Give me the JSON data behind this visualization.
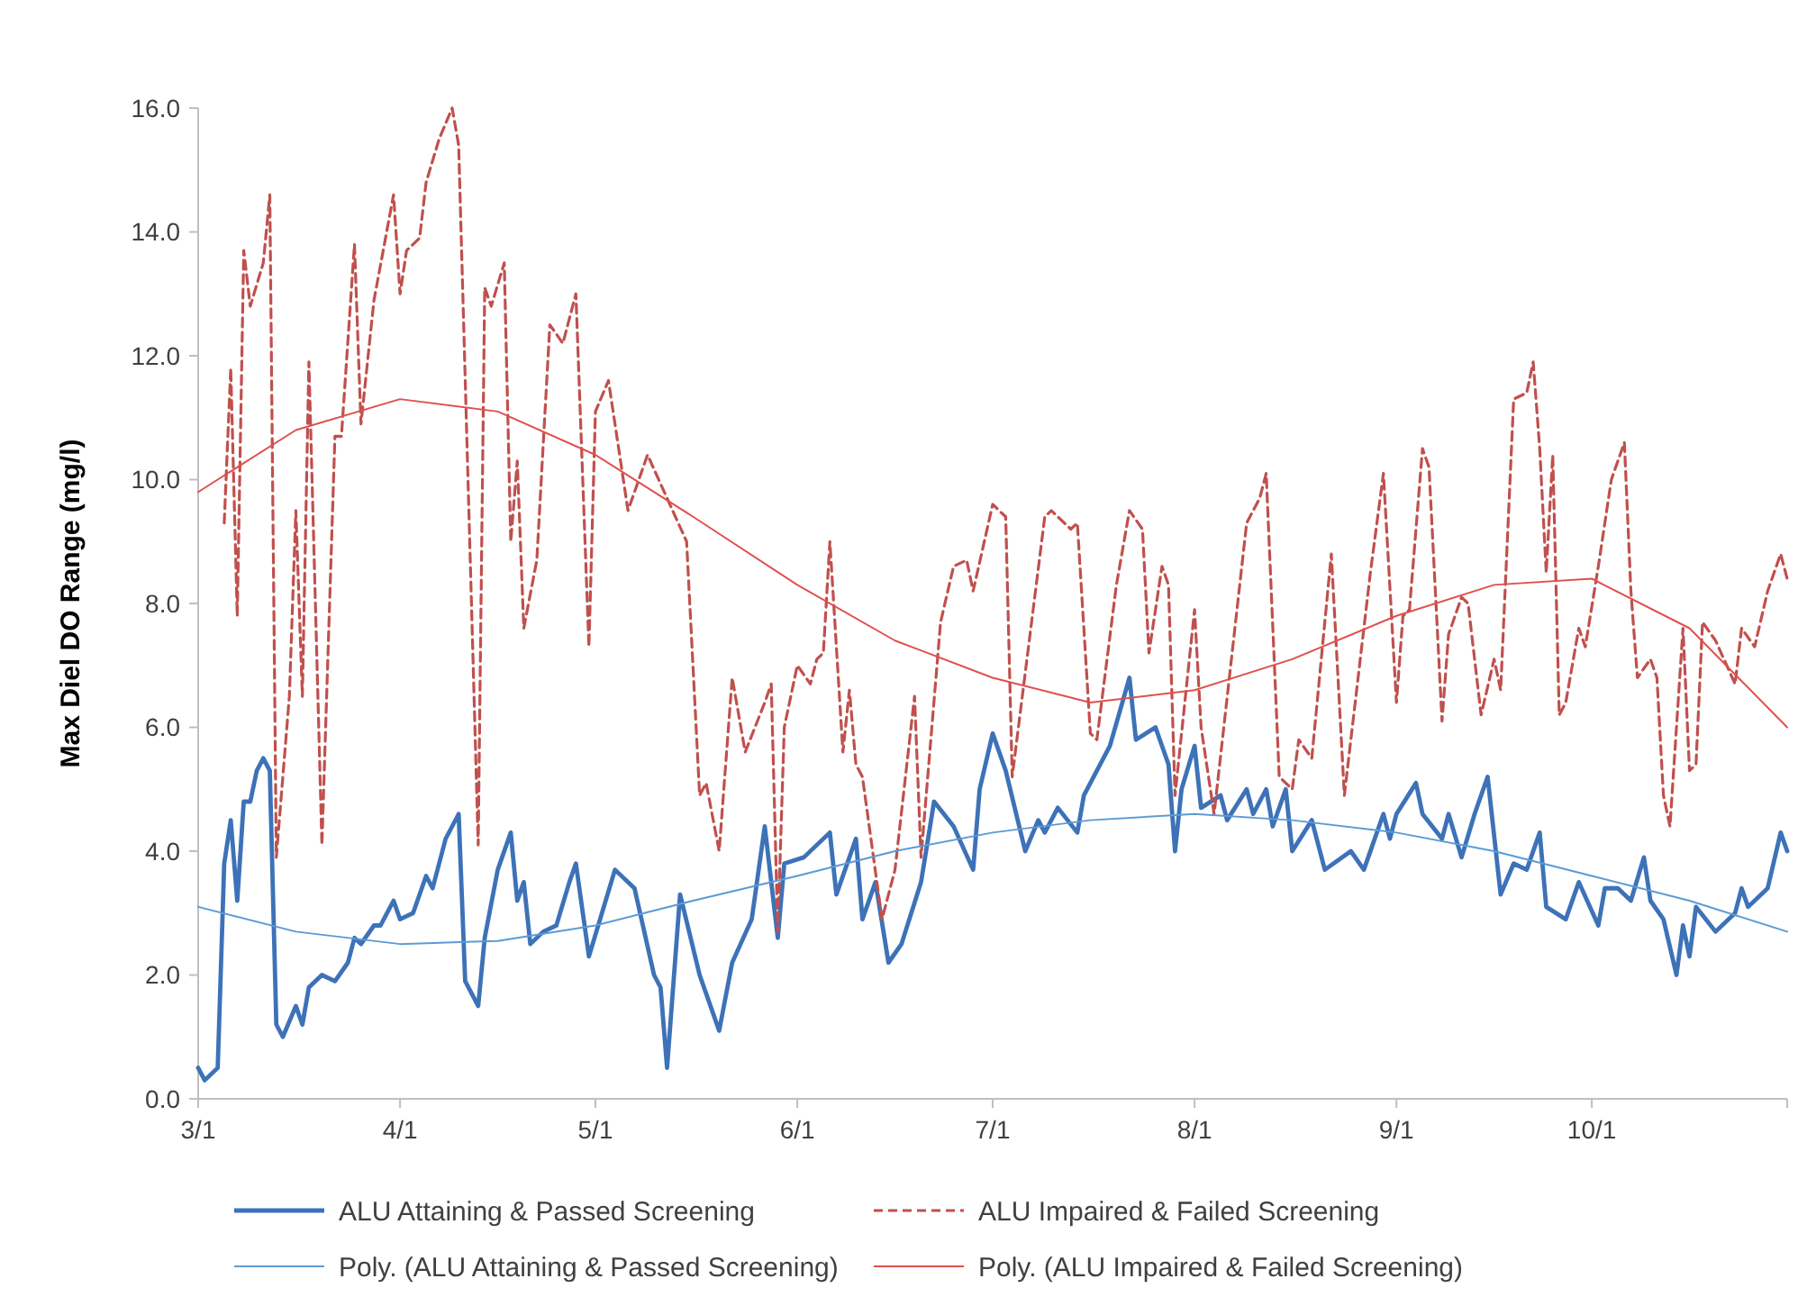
{
  "chart_data": {
    "type": "line",
    "ylabel": "Max Diel DO Range (mg/l)",
    "xlim": [
      "--03-01",
      "--10-31"
    ],
    "xticks": [
      {
        "value": "--03-01",
        "label": "3/1"
      },
      {
        "value": "--04-01",
        "label": "4/1"
      },
      {
        "value": "--05-01",
        "label": "5/1"
      },
      {
        "value": "--06-01",
        "label": "6/1"
      },
      {
        "value": "--07-01",
        "label": "7/1"
      },
      {
        "value": "--08-01",
        "label": "8/1"
      },
      {
        "value": "--09-01",
        "label": "9/1"
      },
      {
        "value": "--10-01",
        "label": "10/1"
      },
      {
        "value": "--10-31",
        "label": null
      }
    ],
    "ylim": [
      0,
      16
    ],
    "yticks": [
      {
        "value": 0,
        "label": "0.0"
      },
      {
        "value": 2,
        "label": "2.0"
      },
      {
        "value": 4,
        "label": "4.0"
      },
      {
        "value": 6,
        "label": "6.0"
      },
      {
        "value": 8,
        "label": "8.0"
      },
      {
        "value": 10,
        "label": "10.0"
      },
      {
        "value": 12,
        "label": "12.0"
      },
      {
        "value": 14,
        "label": "14.0"
      },
      {
        "value": 16,
        "label": "16.0"
      }
    ],
    "legend": "bottom",
    "series": [
      {
        "name": "ALU Attaining & Passed Screening",
        "color": "#3d72b8",
        "line_style": "solid",
        "x": [
          "--03-01",
          "--03-02",
          "--03-04",
          "--03-05",
          "--03-06",
          "--03-07",
          "--03-08",
          "--03-09",
          "--03-10",
          "--03-11",
          "--03-12",
          "--03-13",
          "--03-14",
          "--03-16",
          "--03-17",
          "--03-18",
          "--03-20",
          "--03-22",
          "--03-24",
          "--03-25",
          "--03-26",
          "--03-28",
          "--03-29",
          "--03-31",
          "--04-01",
          "--04-03",
          "--04-05",
          "--04-06",
          "--04-08",
          "--04-10",
          "--04-11",
          "--04-13",
          "--04-14",
          "--04-16",
          "--04-18",
          "--04-19",
          "--04-20",
          "--04-21",
          "--04-23",
          "--04-25",
          "--04-27",
          "--04-28",
          "--04-30",
          "--05-04",
          "--05-07",
          "--05-10",
          "--05-11",
          "--05-12",
          "--05-14",
          "--05-17",
          "--05-20",
          "--05-22",
          "--05-25",
          "--05-27",
          "--05-29",
          "--05-30",
          "--06-02",
          "--06-06",
          "--06-07",
          "--06-10",
          "--06-11",
          "--06-13",
          "--06-15",
          "--06-17",
          "--06-20",
          "--06-22",
          "--06-25",
          "--06-28",
          "--06-29",
          "--07-01",
          "--07-03",
          "--07-06",
          "--07-08",
          "--07-09",
          "--07-11",
          "--07-14",
          "--07-15",
          "--07-19",
          "--07-22",
          "--07-23",
          "--07-26",
          "--07-28",
          "--07-29",
          "--07-30",
          "--08-01",
          "--08-02",
          "--08-05",
          "--08-06",
          "--08-09",
          "--08-10",
          "--08-12",
          "--08-13",
          "--08-15",
          "--08-16",
          "--08-19",
          "--08-21",
          "--08-25",
          "--08-27",
          "--08-30",
          "--08-31",
          "--09-01",
          "--09-04",
          "--09-05",
          "--09-08",
          "--09-09",
          "--09-11",
          "--09-13",
          "--09-15",
          "--09-17",
          "--09-19",
          "--09-21",
          "--09-23",
          "--09-24",
          "--09-27",
          "--09-29",
          "--10-02",
          "--10-03",
          "--10-05",
          "--10-07",
          "--10-09",
          "--10-10",
          "--10-12",
          "--10-14",
          "--10-15",
          "--10-16",
          "--10-17",
          "--10-20",
          "--10-23",
          "--10-24",
          "--10-25",
          "--10-28",
          "--10-30",
          "--10-31"
        ],
        "values": [
          0.5,
          0.3,
          0.5,
          3.8,
          4.5,
          3.2,
          4.8,
          4.8,
          5.3,
          5.5,
          5.3,
          1.2,
          1.0,
          1.5,
          1.2,
          1.8,
          2.0,
          1.9,
          2.2,
          2.6,
          2.5,
          2.8,
          2.8,
          3.2,
          2.9,
          3.0,
          3.6,
          3.4,
          4.2,
          4.6,
          1.9,
          1.5,
          2.6,
          3.7,
          4.3,
          3.2,
          3.5,
          2.5,
          2.7,
          2.8,
          3.5,
          3.8,
          2.3,
          3.7,
          3.4,
          2.0,
          1.8,
          0.5,
          3.3,
          2.0,
          1.1,
          2.2,
          2.9,
          4.4,
          2.6,
          3.8,
          3.9,
          4.3,
          3.3,
          4.2,
          2.9,
          3.5,
          2.2,
          2.5,
          3.5,
          4.8,
          4.4,
          3.7,
          5.0,
          5.9,
          5.3,
          4.0,
          4.5,
          4.3,
          4.7,
          4.3,
          4.9,
          5.7,
          6.8,
          5.8,
          6.0,
          5.4,
          4.0,
          5.0,
          5.7,
          4.7,
          4.9,
          4.5,
          5.0,
          4.6,
          5.0,
          4.4,
          5.0,
          4.0,
          4.5,
          3.7,
          4.0,
          3.7,
          4.6,
          4.2,
          4.6,
          5.1,
          4.6,
          4.2,
          4.6,
          3.9,
          4.6,
          5.2,
          3.3,
          3.8,
          3.7,
          4.3,
          3.1,
          2.9,
          3.5,
          2.8,
          3.4,
          3.4,
          3.2,
          3.9,
          3.2,
          2.9,
          2.0,
          2.8,
          2.3,
          3.1,
          2.7,
          3.0,
          3.4,
          3.1,
          3.4,
          4.3,
          4.0
        ]
      },
      {
        "name": "ALU Impaired & Failed Screening",
        "color": "#c0504d",
        "line_style": "dashed",
        "x": [
          "--03-05",
          "--03-06",
          "--03-07",
          "--03-08",
          "--03-09",
          "--03-11",
          "--03-12",
          "--03-13",
          "--03-15",
          "--03-16",
          "--03-17",
          "--03-18",
          "--03-20",
          "--03-22",
          "--03-23",
          "--03-25",
          "--03-26",
          "--03-28",
          "--03-31",
          "--04-01",
          "--04-02",
          "--04-04",
          "--04-05",
          "--04-07",
          "--04-09",
          "--04-10",
          "--04-13",
          "--04-14",
          "--04-15",
          "--04-17",
          "--04-18",
          "--04-19",
          "--04-20",
          "--04-22",
          "--04-24",
          "--04-26",
          "--04-28",
          "--04-30",
          "--05-01",
          "--05-03",
          "--05-06",
          "--05-09",
          "--05-12",
          "--05-15",
          "--05-17",
          "--05-18",
          "--05-20",
          "--05-22",
          "--05-24",
          "--05-27",
          "--05-28",
          "--05-29",
          "--05-30",
          "--06-01",
          "--06-03",
          "--06-04",
          "--06-05",
          "--06-06",
          "--06-08",
          "--06-09",
          "--06-10",
          "--06-11",
          "--06-14",
          "--06-16",
          "--06-19",
          "--06-20",
          "--06-23",
          "--06-25",
          "--06-27",
          "--06-28",
          "--07-01",
          "--07-03",
          "--07-04",
          "--07-09",
          "--07-10",
          "--07-13",
          "--07-14",
          "--07-16",
          "--07-17",
          "--07-20",
          "--07-22",
          "--07-24",
          "--07-25",
          "--07-27",
          "--07-28",
          "--07-29",
          "--08-01",
          "--08-02",
          "--08-04",
          "--08-09",
          "--08-11",
          "--08-12",
          "--08-14",
          "--08-16",
          "--08-17",
          "--08-19",
          "--08-22",
          "--08-24",
          "--08-28",
          "--08-30",
          "--09-01",
          "--09-02",
          "--09-03",
          "--09-05",
          "--09-06",
          "--09-08",
          "--09-09",
          "--09-11",
          "--09-12",
          "--09-14",
          "--09-16",
          "--09-17",
          "--09-19",
          "--09-21",
          "--09-22",
          "--09-23",
          "--09-24",
          "--09-25",
          "--09-26",
          "--09-27",
          "--09-29",
          "--09-30",
          "--10-02",
          "--10-04",
          "--10-06",
          "--10-07",
          "--10-08",
          "--10-10",
          "--10-11",
          "--10-12",
          "--10-13",
          "--10-15",
          "--10-16",
          "--10-17",
          "--10-18",
          "--10-20",
          "--10-23",
          "--10-24",
          "--10-26",
          "--10-28",
          "--10-30",
          "--10-31"
        ],
        "values": [
          9.3,
          11.8,
          7.8,
          13.7,
          12.8,
          13.5,
          14.6,
          3.9,
          6.5,
          9.5,
          6.5,
          11.9,
          4.1,
          10.7,
          10.7,
          13.8,
          10.9,
          12.9,
          14.6,
          13.0,
          13.7,
          13.9,
          14.8,
          15.5,
          16.0,
          15.4,
          4.1,
          13.1,
          12.8,
          13.5,
          9.0,
          10.3,
          7.6,
          8.7,
          12.5,
          12.2,
          13.0,
          7.3,
          11.1,
          11.6,
          9.5,
          10.4,
          9.7,
          9.0,
          4.9,
          5.1,
          4.0,
          6.8,
          5.6,
          6.4,
          6.7,
          2.7,
          6.0,
          7.0,
          6.7,
          7.1,
          7.2,
          9.0,
          5.6,
          6.6,
          5.4,
          5.2,
          2.9,
          3.7,
          6.5,
          3.9,
          7.7,
          8.6,
          8.7,
          8.2,
          9.6,
          9.4,
          5.2,
          9.4,
          9.5,
          9.2,
          9.3,
          5.9,
          5.8,
          8.3,
          9.5,
          9.2,
          7.2,
          8.6,
          8.3,
          4.9,
          7.9,
          6.0,
          4.6,
          9.3,
          9.7,
          10.1,
          5.2,
          5.0,
          5.8,
          5.5,
          8.8,
          4.9,
          8.5,
          10.1,
          6.4,
          7.8,
          7.9,
          10.5,
          10.2,
          6.1,
          7.5,
          8.1,
          8.0,
          6.2,
          7.1,
          6.6,
          11.3,
          11.4,
          11.9,
          10.5,
          8.5,
          10.4,
          6.2,
          6.4,
          7.6,
          7.3,
          8.6,
          10.0,
          10.6,
          8.2,
          6.8,
          7.1,
          6.8,
          4.9,
          4.4,
          7.6,
          5.3,
          5.4,
          7.7,
          7.4,
          6.7,
          7.6,
          7.3,
          8.2,
          8.8,
          8.4
        ]
      },
      {
        "name": "Poly. (ALU Attaining & Passed Screening)",
        "color": "#5b9bd5",
        "line_style": "solid",
        "x": [
          "--03-01",
          "--03-16",
          "--04-01",
          "--04-16",
          "--05-01",
          "--05-16",
          "--06-01",
          "--06-16",
          "--07-01",
          "--07-16",
          "--08-01",
          "--08-16",
          "--09-01",
          "--09-16",
          "--10-01",
          "--10-16",
          "--10-31"
        ],
        "values": [
          3.1,
          2.7,
          2.5,
          2.55,
          2.8,
          3.2,
          3.6,
          4.0,
          4.3,
          4.5,
          4.6,
          4.5,
          4.3,
          4.0,
          3.6,
          3.2,
          2.7
        ]
      },
      {
        "name": "Poly. (ALU Impaired & Failed Screening)",
        "color": "#e0504d",
        "line_style": "solid",
        "x": [
          "--03-01",
          "--03-16",
          "--04-01",
          "--04-16",
          "--05-01",
          "--05-16",
          "--06-01",
          "--06-16",
          "--07-01",
          "--07-16",
          "--08-01",
          "--08-16",
          "--09-01",
          "--09-16",
          "--10-01",
          "--10-16",
          "--10-31"
        ],
        "values": [
          9.8,
          10.8,
          11.3,
          11.1,
          10.4,
          9.4,
          8.3,
          7.4,
          6.8,
          6.4,
          6.6,
          7.1,
          7.8,
          8.3,
          8.4,
          7.6,
          6.0
        ]
      }
    ]
  }
}
